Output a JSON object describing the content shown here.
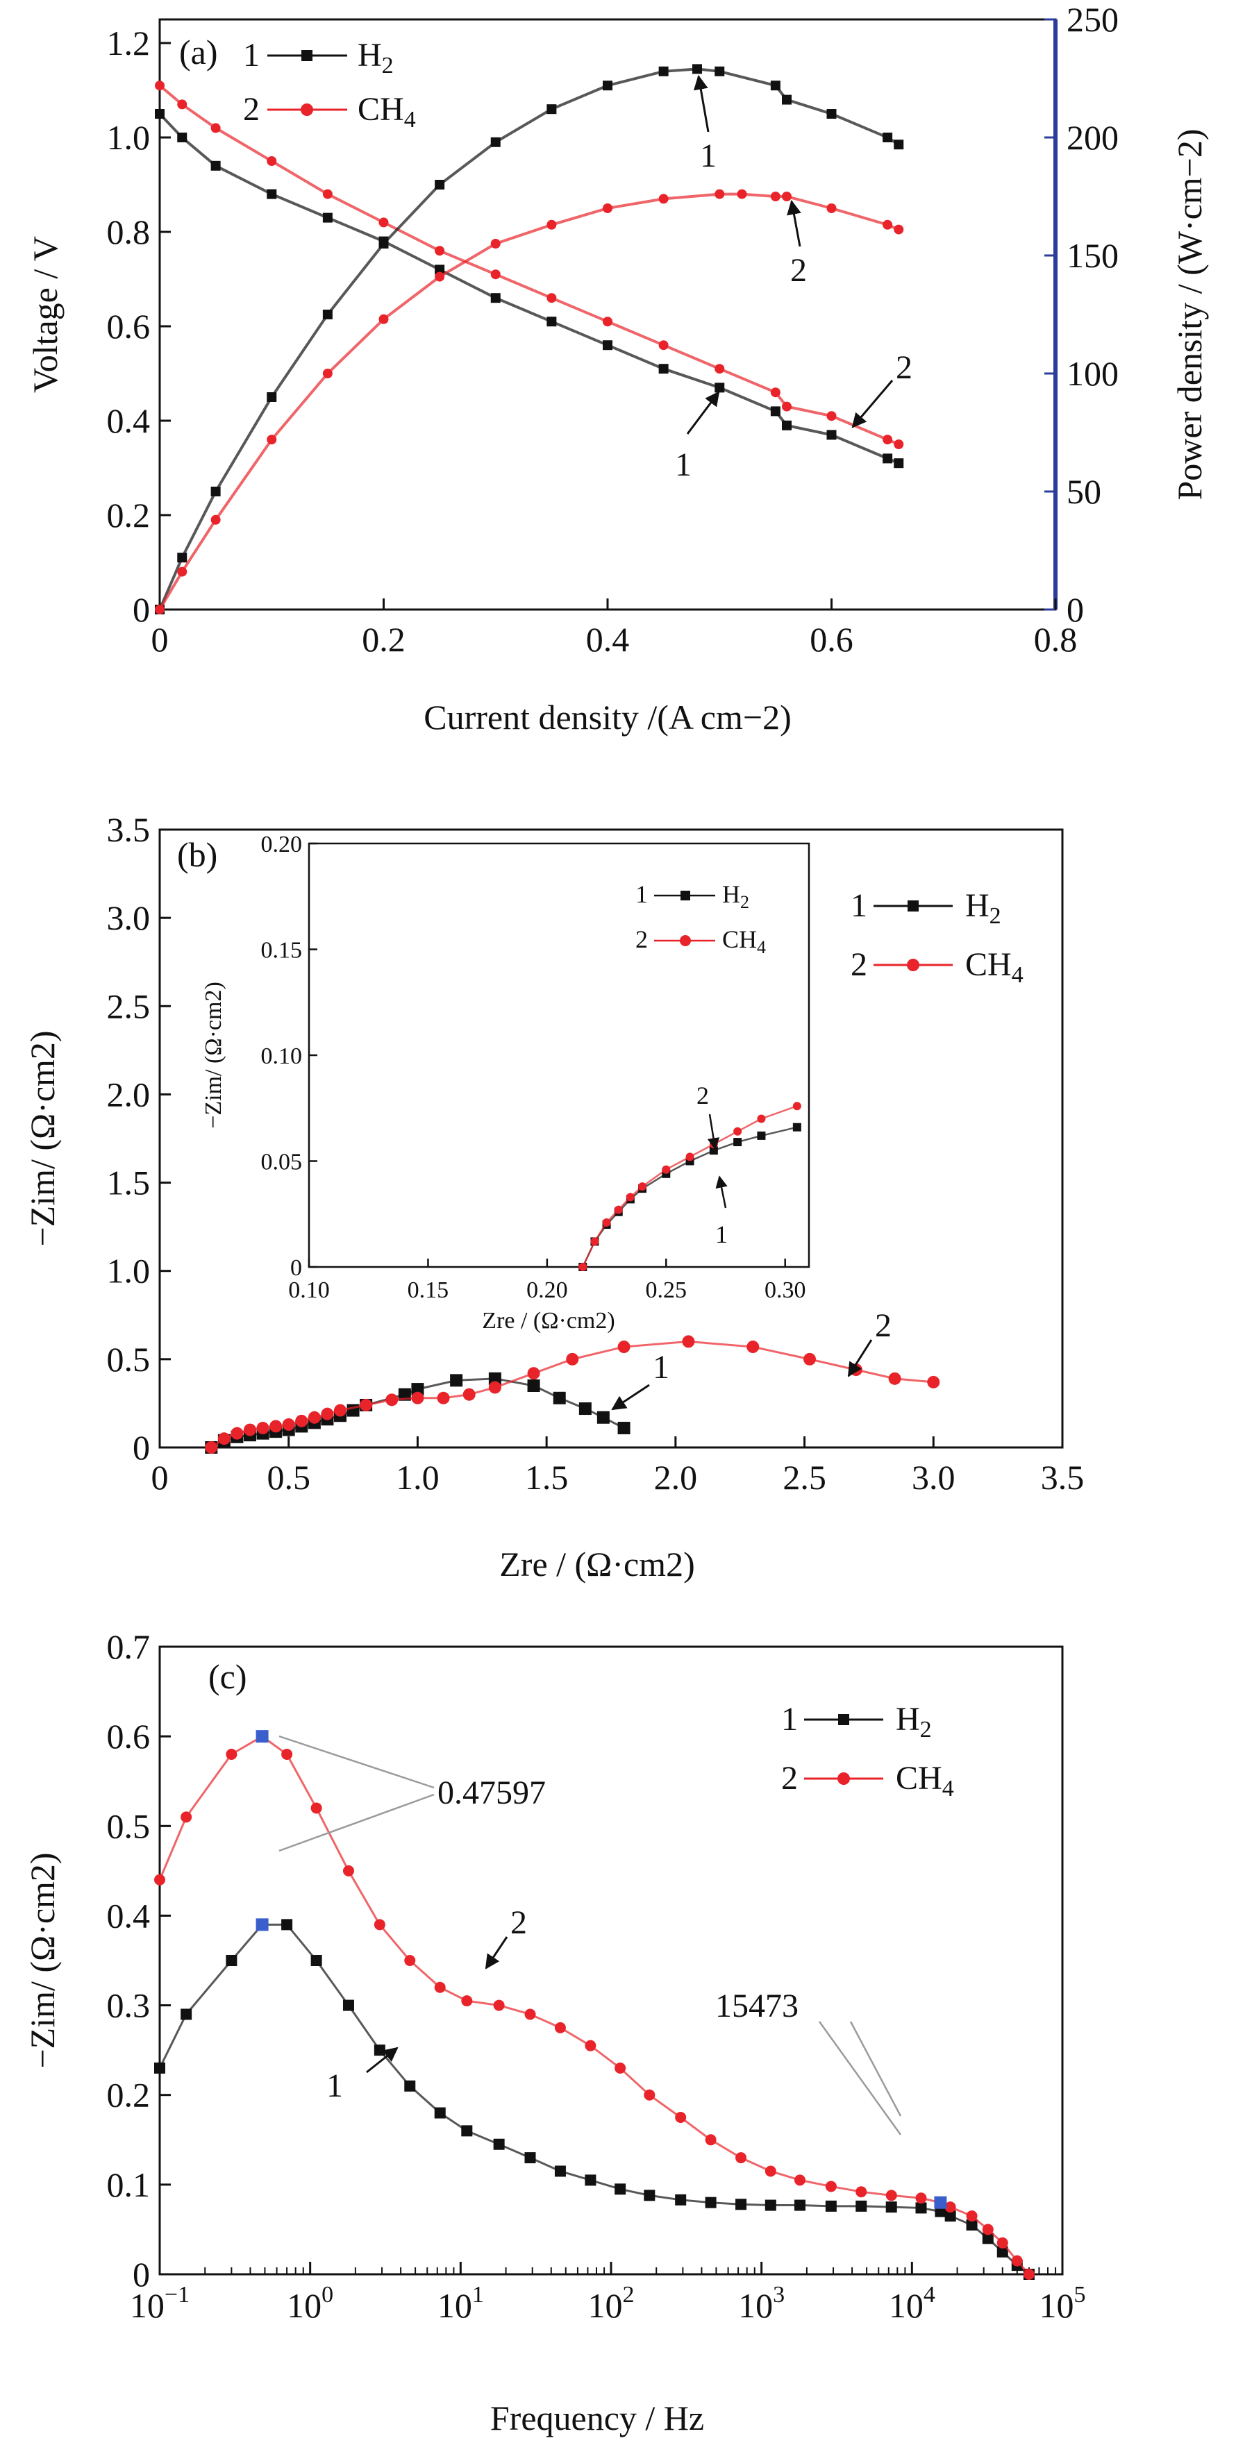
{
  "figure": {
    "panels": [
      "(a)",
      "(b)",
      "(c)"
    ]
  },
  "chart_data": [
    {
      "panel": "(a)",
      "type": "line",
      "xlabel": "Current density /(A cm−2)",
      "ylabel": "Voltage / V",
      "y2label": "Power density / (W·cm−2)",
      "xlim": [
        0,
        0.8
      ],
      "ylim": [
        0,
        1.25
      ],
      "y2lim": [
        0,
        250
      ],
      "xticks": [
        "0",
        "0.2",
        "0.4",
        "0.6",
        "0.8"
      ],
      "yticks": [
        "0",
        "0.2",
        "0.4",
        "0.6",
        "0.8",
        "1.0",
        "1.2"
      ],
      "y2ticks": [
        "0",
        "50",
        "100",
        "150",
        "200",
        "250"
      ],
      "grid": false,
      "legend": {
        "placement": "top-left",
        "entries": [
          {
            "num": "1",
            "base": "H",
            "sub": "2",
            "color": "#111111",
            "marker": "square"
          },
          {
            "num": "2",
            "base": "CH",
            "sub": "4",
            "color": "#e8232a",
            "marker": "circle"
          }
        ]
      },
      "series": [
        {
          "name": "H2",
          "axis": "left",
          "kind": "voltage",
          "color": "#111111",
          "marker": "square",
          "x": [
            0,
            0.02,
            0.05,
            0.1,
            0.15,
            0.2,
            0.25,
            0.3,
            0.35,
            0.4,
            0.45,
            0.5,
            0.55,
            0.56,
            0.6,
            0.65,
            0.66
          ],
          "y": [
            1.05,
            1.0,
            0.94,
            0.88,
            0.83,
            0.78,
            0.72,
            0.66,
            0.61,
            0.56,
            0.51,
            0.47,
            0.42,
            0.39,
            0.37,
            0.32,
            0.31
          ]
        },
        {
          "name": "CH4",
          "axis": "left",
          "kind": "voltage",
          "color": "#e8232a",
          "marker": "circle",
          "x": [
            0,
            0.02,
            0.05,
            0.1,
            0.15,
            0.2,
            0.25,
            0.3,
            0.35,
            0.4,
            0.45,
            0.5,
            0.55,
            0.56,
            0.6,
            0.65,
            0.66
          ],
          "y": [
            1.11,
            1.07,
            1.02,
            0.95,
            0.88,
            0.82,
            0.76,
            0.71,
            0.66,
            0.61,
            0.56,
            0.51,
            0.46,
            0.43,
            0.41,
            0.36,
            0.35
          ]
        },
        {
          "name": "H2",
          "axis": "right",
          "kind": "power",
          "color": "#111111",
          "marker": "square",
          "x": [
            0,
            0.02,
            0.05,
            0.1,
            0.15,
            0.2,
            0.25,
            0.3,
            0.35,
            0.4,
            0.45,
            0.48,
            0.5,
            0.55,
            0.56,
            0.6,
            0.65,
            0.66
          ],
          "y": [
            0,
            22,
            50,
            90,
            125,
            155,
            180,
            198,
            212,
            222,
            228,
            229,
            228,
            222,
            216,
            210,
            200,
            197
          ]
        },
        {
          "name": "CH4",
          "axis": "right",
          "kind": "power",
          "color": "#e8232a",
          "marker": "circle",
          "x": [
            0,
            0.02,
            0.05,
            0.1,
            0.15,
            0.2,
            0.25,
            0.3,
            0.35,
            0.4,
            0.45,
            0.5,
            0.52,
            0.55,
            0.56,
            0.6,
            0.65,
            0.66
          ],
          "y": [
            0,
            16,
            38,
            72,
            100,
            123,
            141,
            155,
            163,
            170,
            174,
            176,
            176,
            175,
            175,
            170,
            163,
            161
          ]
        }
      ],
      "annotations": [
        {
          "text": "1",
          "target": "H2 power peak"
        },
        {
          "text": "2",
          "target": "CH4 power peak"
        },
        {
          "text": "1",
          "target": "H2 voltage"
        },
        {
          "text": "2",
          "target": "CH4 voltage"
        }
      ]
    },
    {
      "panel": "(b)",
      "type": "scatter",
      "xlabel": "Zre / (Ω·cm2)",
      "ylabel": "−Zim/ (Ω·cm2)",
      "xlim": [
        0,
        3.5
      ],
      "ylim": [
        0,
        3.5
      ],
      "xticks": [
        "0",
        "0.5",
        "1.0",
        "1.5",
        "2.0",
        "2.5",
        "3.0",
        "3.5"
      ],
      "yticks": [
        "0",
        "0.5",
        "1.0",
        "1.5",
        "2.0",
        "2.5",
        "3.0",
        "3.5"
      ],
      "grid": false,
      "legend": {
        "placement": "top-right",
        "entries": [
          {
            "num": "1",
            "base": "H",
            "sub": "2",
            "color": "#111111",
            "marker": "square"
          },
          {
            "num": "2",
            "base": "CH",
            "sub": "4",
            "color": "#e8232a",
            "marker": "circle"
          }
        ]
      },
      "series": [
        {
          "name": "H2",
          "color": "#111111",
          "marker": "square",
          "x": [
            0.2,
            0.25,
            0.3,
            0.35,
            0.4,
            0.45,
            0.5,
            0.55,
            0.6,
            0.65,
            0.7,
            0.75,
            0.8,
            0.95,
            1.0,
            1.15,
            1.3,
            1.45,
            1.55,
            1.65,
            1.72,
            1.8
          ],
          "y": [
            0.0,
            0.04,
            0.06,
            0.07,
            0.08,
            0.09,
            0.1,
            0.12,
            0.14,
            0.16,
            0.18,
            0.21,
            0.24,
            0.3,
            0.33,
            0.38,
            0.39,
            0.35,
            0.28,
            0.22,
            0.17,
            0.11
          ]
        },
        {
          "name": "CH4",
          "color": "#e8232a",
          "marker": "circle",
          "x": [
            0.2,
            0.25,
            0.3,
            0.35,
            0.4,
            0.45,
            0.5,
            0.55,
            0.6,
            0.65,
            0.7,
            0.8,
            0.9,
            1.0,
            1.1,
            1.2,
            1.3,
            1.45,
            1.6,
            1.8,
            2.05,
            2.3,
            2.52,
            2.7,
            2.85,
            3.0
          ],
          "y": [
            0.0,
            0.05,
            0.08,
            0.1,
            0.11,
            0.12,
            0.13,
            0.15,
            0.17,
            0.19,
            0.21,
            0.24,
            0.27,
            0.28,
            0.28,
            0.3,
            0.34,
            0.42,
            0.5,
            0.57,
            0.6,
            0.57,
            0.5,
            0.44,
            0.39,
            0.37
          ]
        }
      ],
      "annotations": [
        {
          "text": "1",
          "target": "H2 tail"
        },
        {
          "text": "2",
          "target": "CH4 tail"
        }
      ],
      "inset": {
        "xlabel": "Zre / (Ω·cm2)",
        "ylabel": "−Zim/ (Ω·cm2)",
        "xlim": [
          0.1,
          0.31
        ],
        "ylim": [
          0,
          0.2
        ],
        "xticks": [
          "0.10",
          "0.15",
          "0.20",
          "0.25",
          "0.30"
        ],
        "yticks": [
          "0",
          "0.05",
          "0.10",
          "0.15",
          "0.20"
        ],
        "legend": [
          {
            "num": "1",
            "base": "H",
            "sub": "2"
          },
          {
            "num": "2",
            "base": "CH",
            "sub": "4"
          }
        ],
        "series": [
          {
            "name": "H2",
            "color": "#111111",
            "marker": "square",
            "x": [
              0.215,
              0.22,
              0.225,
              0.23,
              0.235,
              0.24,
              0.25,
              0.26,
              0.27,
              0.28,
              0.29,
              0.305
            ],
            "y": [
              0.0,
              0.012,
              0.02,
              0.026,
              0.032,
              0.037,
              0.044,
              0.05,
              0.055,
              0.059,
              0.062,
              0.066
            ]
          },
          {
            "name": "CH4",
            "color": "#e8232a",
            "marker": "circle",
            "x": [
              0.215,
              0.22,
              0.225,
              0.23,
              0.235,
              0.24,
              0.25,
              0.26,
              0.27,
              0.28,
              0.29,
              0.305
            ],
            "y": [
              0.0,
              0.012,
              0.021,
              0.027,
              0.033,
              0.038,
              0.046,
              0.052,
              0.058,
              0.064,
              0.07,
              0.076
            ]
          }
        ],
        "annotations": [
          {
            "text": "1",
            "target": "H2 inset"
          },
          {
            "text": "2",
            "target": "CH4 inset"
          }
        ]
      }
    },
    {
      "panel": "(c)",
      "type": "line",
      "xlabel": "Frequency / Hz",
      "ylabel": "−Zim/ (Ω·cm2)",
      "xscale": "log",
      "xlim": [
        0.1,
        100000
      ],
      "ylim": [
        0,
        0.7
      ],
      "xticks": [
        {
          "base": "10",
          "exp": "−1"
        },
        {
          "base": "10",
          "exp": "0"
        },
        {
          "base": "10",
          "exp": "1"
        },
        {
          "base": "10",
          "exp": "2"
        },
        {
          "base": "10",
          "exp": "3"
        },
        {
          "base": "10",
          "exp": "4"
        },
        {
          "base": "10",
          "exp": "5"
        }
      ],
      "yticks": [
        "0",
        "0.1",
        "0.2",
        "0.3",
        "0.4",
        "0.5",
        "0.6",
        "0.7"
      ],
      "grid": false,
      "legend": {
        "placement": "top-right",
        "entries": [
          {
            "num": "1",
            "base": "H",
            "sub": "2",
            "color": "#111111",
            "marker": "square"
          },
          {
            "num": "2",
            "base": "CH",
            "sub": "4",
            "color": "#e8232a",
            "marker": "circle"
          }
        ]
      },
      "series": [
        {
          "name": "H2",
          "color": "#111111",
          "marker": "square",
          "x": [
            0.1,
            0.15,
            0.3,
            0.48,
            0.7,
            1.1,
            1.8,
            2.9,
            4.6,
            7.3,
            11,
            18,
            29,
            46,
            73,
            115,
            180,
            290,
            460,
            730,
            1150,
            1800,
            2900,
            4600,
            7300,
            11500,
            15473,
            18000,
            25000,
            32000,
            40000,
            50000,
            60000
          ],
          "y": [
            0.23,
            0.29,
            0.35,
            0.39,
            0.39,
            0.35,
            0.3,
            0.25,
            0.21,
            0.18,
            0.16,
            0.145,
            0.13,
            0.115,
            0.105,
            0.095,
            0.088,
            0.083,
            0.08,
            0.078,
            0.077,
            0.077,
            0.076,
            0.076,
            0.075,
            0.074,
            0.07,
            0.065,
            0.055,
            0.04,
            0.025,
            0.01,
            0.0
          ]
        },
        {
          "name": "CH4",
          "color": "#e8232a",
          "marker": "circle",
          "x": [
            0.1,
            0.15,
            0.3,
            0.48,
            0.7,
            1.1,
            1.8,
            2.9,
            4.6,
            7.3,
            11,
            18,
            29,
            46,
            73,
            115,
            180,
            290,
            460,
            730,
            1150,
            1800,
            2900,
            4600,
            7300,
            11500,
            15473,
            18000,
            25000,
            32000,
            40000,
            50000,
            60000
          ],
          "y": [
            0.44,
            0.51,
            0.58,
            0.6,
            0.58,
            0.52,
            0.45,
            0.39,
            0.35,
            0.32,
            0.305,
            0.3,
            0.29,
            0.275,
            0.255,
            0.23,
            0.2,
            0.175,
            0.15,
            0.13,
            0.115,
            0.105,
            0.098,
            0.092,
            0.088,
            0.085,
            0.08,
            0.075,
            0.065,
            0.05,
            0.035,
            0.015,
            0.0
          ]
        }
      ],
      "peak_markers": [
        {
          "x": 0.48,
          "y": 0.6
        },
        {
          "x": 0.48,
          "y": 0.39
        },
        {
          "x": 15473,
          "y": 0.08
        }
      ],
      "annotations": [
        {
          "text": "0.47597",
          "target": "peak frequency"
        },
        {
          "text": "15473",
          "target": "high frequency point"
        },
        {
          "text": "1",
          "target": "H2 curve"
        },
        {
          "text": "2",
          "target": "CH4 curve"
        }
      ]
    }
  ]
}
